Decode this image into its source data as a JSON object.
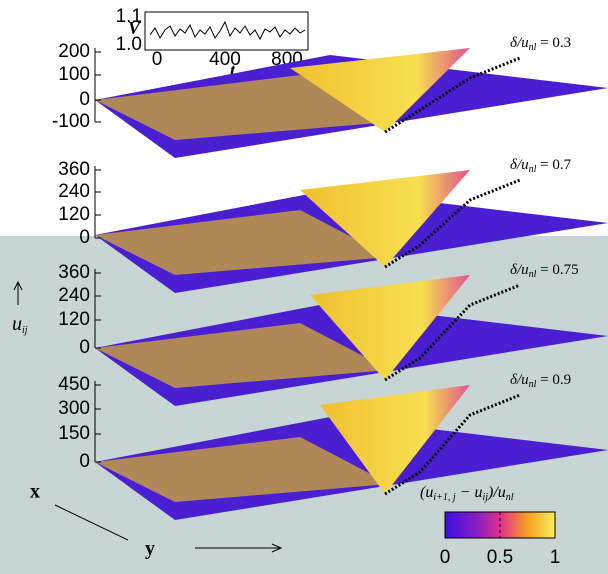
{
  "inset": {
    "ylabel": "V",
    "yticks": [
      "1.1",
      "1.0"
    ],
    "xticks": [
      "0",
      "400",
      "800"
    ],
    "xlabel": "t"
  },
  "panels": [
    {
      "yticks": [
        "200",
        "100",
        "0",
        "-100"
      ],
      "label": {
        "main": "δ/u",
        "sub": "nl",
        "rest": " = 0.3"
      }
    },
    {
      "yticks": [
        "360",
        "240",
        "120",
        "0"
      ],
      "label": {
        "main": "δ/u",
        "sub": "nl",
        "rest": " = 0.7"
      }
    },
    {
      "yticks": [
        "360",
        "240",
        "120",
        "0"
      ],
      "label": {
        "main": "δ/u",
        "sub": "nl",
        "rest": " = 0.75"
      }
    },
    {
      "yticks": [
        "450",
        "300",
        "150",
        "0"
      ],
      "label": {
        "main": "δ/u",
        "sub": "nl",
        "rest": " = 0.9"
      }
    }
  ],
  "axes": {
    "u": {
      "main": "u",
      "sub": "ij"
    },
    "x": "x",
    "y": "y"
  },
  "colorbar": {
    "label": {
      "a": "(u",
      "asub": "i+1, j",
      "b": " − u",
      "bsub": "ij",
      "c": ")/u",
      "csub": "nl"
    },
    "ticks": [
      "0",
      "0.5",
      "1"
    ]
  }
}
